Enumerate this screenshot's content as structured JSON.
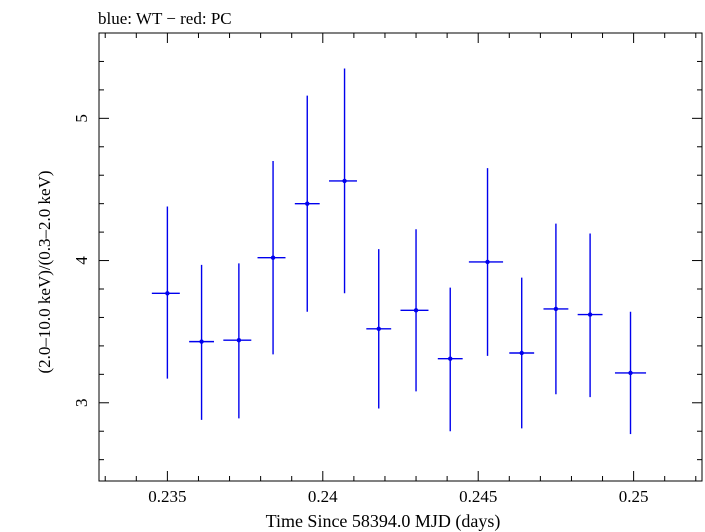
{
  "chart_data": {
    "type": "scatter",
    "title": "blue: WT − red: PC",
    "xlabel": "Time Since 58394.0 MJD (days)",
    "ylabel": "(2.0–10.0 keV)/(0.3–2.0 keV)",
    "xlim": [
      0.2328,
      0.2522
    ],
    "ylim": [
      2.45,
      5.6
    ],
    "xticks": [
      0.235,
      0.24,
      0.245,
      0.25
    ],
    "xtick_labels": [
      "0.235",
      "0.24",
      "0.245",
      "0.25"
    ],
    "yticks": [
      3,
      4,
      5
    ],
    "ytick_labels": [
      "3",
      "4",
      "5"
    ],
    "grid": false,
    "series": [
      {
        "color": "#0000ee",
        "points": [
          {
            "x": 0.235,
            "xlo": 0.2345,
            "xhi": 0.2354,
            "y": 3.77,
            "ylo": 3.17,
            "yhi": 4.38
          },
          {
            "x": 0.2361,
            "xlo": 0.2357,
            "xhi": 0.2365,
            "y": 3.43,
            "ylo": 2.88,
            "yhi": 3.97
          },
          {
            "x": 0.2373,
            "xlo": 0.2368,
            "xhi": 0.2377,
            "y": 3.44,
            "ylo": 2.89,
            "yhi": 3.98
          },
          {
            "x": 0.2384,
            "xlo": 0.2379,
            "xhi": 0.2388,
            "y": 4.02,
            "ylo": 3.34,
            "yhi": 4.7
          },
          {
            "x": 0.2395,
            "xlo": 0.2391,
            "xhi": 0.2399,
            "y": 4.4,
            "ylo": 3.64,
            "yhi": 5.16
          },
          {
            "x": 0.2407,
            "xlo": 0.2402,
            "xhi": 0.2411,
            "y": 4.56,
            "ylo": 3.77,
            "yhi": 5.35
          },
          {
            "x": 0.2418,
            "xlo": 0.2414,
            "xhi": 0.2422,
            "y": 3.52,
            "ylo": 2.96,
            "yhi": 4.08
          },
          {
            "x": 0.243,
            "xlo": 0.2425,
            "xhi": 0.2434,
            "y": 3.65,
            "ylo": 3.08,
            "yhi": 4.22
          },
          {
            "x": 0.2441,
            "xlo": 0.2437,
            "xhi": 0.2445,
            "y": 3.31,
            "ylo": 2.8,
            "yhi": 3.81
          },
          {
            "x": 0.2453,
            "xlo": 0.2447,
            "xhi": 0.2458,
            "y": 3.99,
            "ylo": 3.33,
            "yhi": 4.65
          },
          {
            "x": 0.2464,
            "xlo": 0.246,
            "xhi": 0.2468,
            "y": 3.35,
            "ylo": 2.82,
            "yhi": 3.88
          },
          {
            "x": 0.2475,
            "xlo": 0.2471,
            "xhi": 0.2479,
            "y": 3.66,
            "ylo": 3.06,
            "yhi": 4.26
          },
          {
            "x": 0.2486,
            "xlo": 0.2482,
            "xhi": 0.249,
            "y": 3.62,
            "ylo": 3.04,
            "yhi": 4.19
          },
          {
            "x": 0.2499,
            "xlo": 0.2494,
            "xhi": 0.2504,
            "y": 3.21,
            "ylo": 2.78,
            "yhi": 3.64
          }
        ]
      }
    ]
  }
}
